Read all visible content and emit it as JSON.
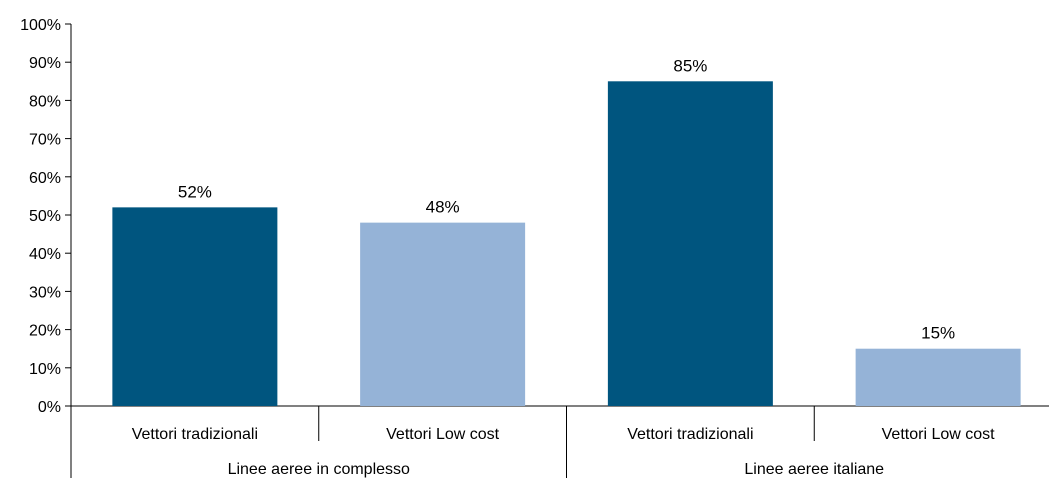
{
  "chart_data": {
    "type": "bar",
    "title": "",
    "xlabel": "",
    "ylabel": "",
    "ylim": [
      0,
      100
    ],
    "y_ticks": [
      "0%",
      "10%",
      "20%",
      "30%",
      "40%",
      "50%",
      "60%",
      "70%",
      "80%",
      "90%",
      "100%"
    ],
    "grid": false,
    "legend": "none",
    "groups": [
      "Linee aeree in complesso",
      "Linee aeree italiane"
    ],
    "categories": [
      "Vettori tradizionali",
      "Vettori Low cost",
      "Vettori tradizionali",
      "Vettori Low cost"
    ],
    "values": [
      52,
      48,
      85,
      15
    ],
    "value_labels": [
      "52%",
      "48%",
      "85%",
      "15%"
    ],
    "colors": [
      "#00557f",
      "#95b3d7",
      "#00557f",
      "#95b3d7"
    ]
  }
}
